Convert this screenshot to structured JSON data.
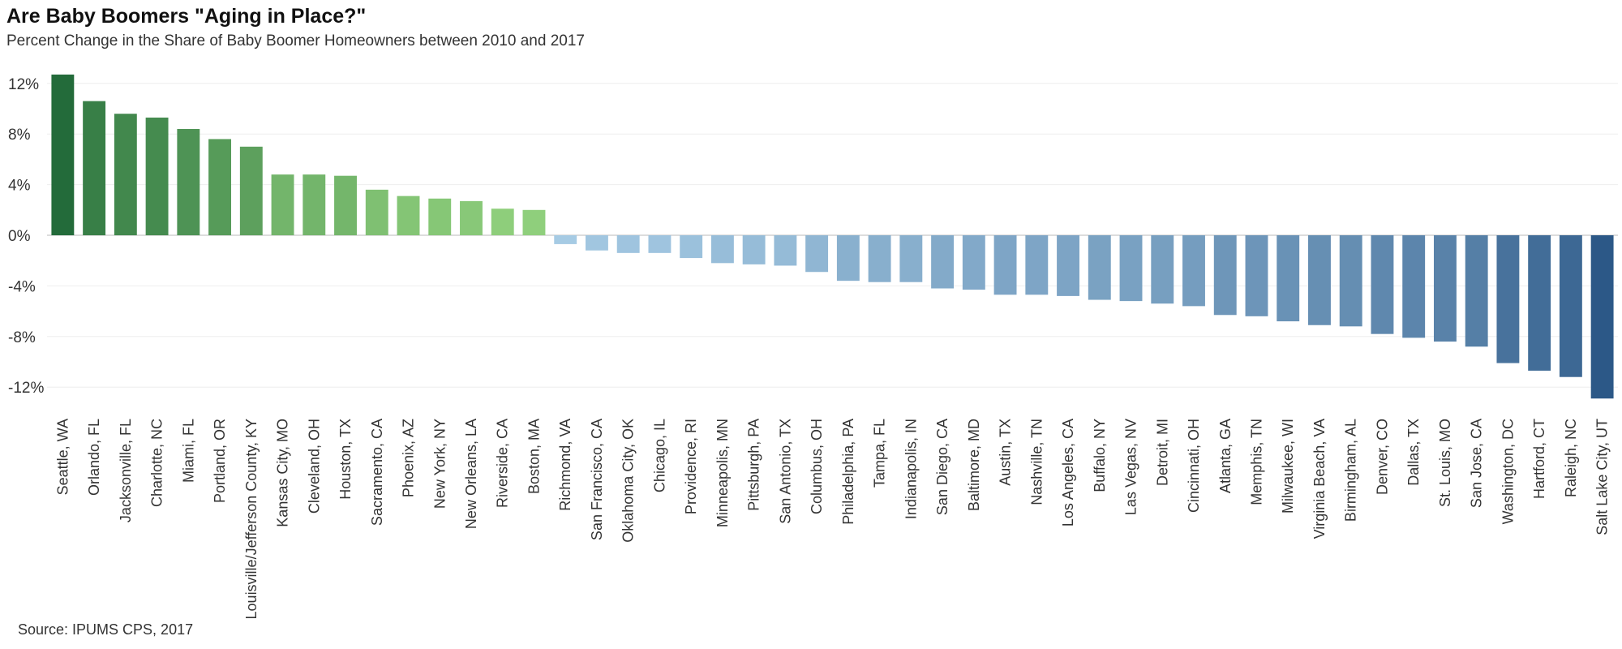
{
  "header": {
    "title": "Are Baby Boomers \"Aging in Place?\"",
    "subtitle": "Percent Change in the Share of Baby Boomer Homeowners between 2010 and 2017"
  },
  "footer": {
    "source": "Source: IPUMS CPS, 2017"
  },
  "colors": {
    "positive_dark": "#236b3a",
    "positive_light": "#8fcf7c",
    "negative_light": "#a6cbe4",
    "negative_dark": "#2c5887",
    "gridline": "#eeeeee",
    "axis": "#bbbbbb"
  },
  "chart_data": {
    "type": "bar",
    "title": "Are Baby Boomers \"Aging in Place?\"",
    "subtitle": "Percent Change in the Share of Baby Boomer Homeowners between 2010 and 2017",
    "xlabel": "",
    "ylabel": "",
    "ylim": [
      -14,
      13
    ],
    "yticks": [
      12,
      8,
      4,
      0,
      -4,
      -8,
      -12
    ],
    "ytick_labels": [
      "12%",
      "8%",
      "4%",
      "0%",
      "-4%",
      "-8%",
      "-12%"
    ],
    "grid": true,
    "legend": "none",
    "categories": [
      "Seattle, WA",
      "Orlando, FL",
      "Jacksonville, FL",
      "Charlotte, NC",
      "Miami, FL",
      "Portland, OR",
      "Louisville/Jefferson County, KY",
      "Kansas City, MO",
      "Cleveland, OH",
      "Houston, TX",
      "Sacramento, CA",
      "Phoenix, AZ",
      "New York, NY",
      "New Orleans, LA",
      "Riverside, CA",
      "Boston, MA",
      "Richmond, VA",
      "San Francisco, CA",
      "Oklahoma City, OK",
      "Chicago, IL",
      "Providence, RI",
      "Minneapolis, MN",
      "Pittsburgh, PA",
      "San Antonio, TX",
      "Columbus, OH",
      "Philadelphia, PA",
      "Tampa, FL",
      "Indianapolis, IN",
      "San Diego, CA",
      "Baltimore, MD",
      "Austin, TX",
      "Nashville, TN",
      "Los Angeles, CA",
      "Buffalo, NY",
      "Las Vegas, NV",
      "Detroit, MI",
      "Cincinnati, OH",
      "Atlanta, GA",
      "Memphis, TN",
      "Milwaukee, WI",
      "Virginia Beach, VA",
      "Birmingham, AL",
      "Denver, CO",
      "Dallas, TX",
      "St. Louis, MO",
      "San Jose, CA",
      "Washington, DC",
      "Hartford, CT",
      "Raleigh, NC",
      "Salt Lake City, UT"
    ],
    "values": [
      12.7,
      10.6,
      9.6,
      9.3,
      8.4,
      7.6,
      7.0,
      4.8,
      4.8,
      4.7,
      3.6,
      3.1,
      2.9,
      2.7,
      2.1,
      2.0,
      -0.7,
      -1.2,
      -1.4,
      -1.4,
      -1.8,
      -2.2,
      -2.3,
      -2.4,
      -2.9,
      -3.6,
      -3.7,
      -3.7,
      -4.2,
      -4.3,
      -4.7,
      -4.7,
      -4.8,
      -5.1,
      -5.2,
      -5.4,
      -5.6,
      -6.3,
      -6.4,
      -6.8,
      -7.1,
      -7.2,
      -7.8,
      -8.1,
      -8.4,
      -8.8,
      -10.1,
      -10.7,
      -11.2,
      -12.9
    ]
  }
}
